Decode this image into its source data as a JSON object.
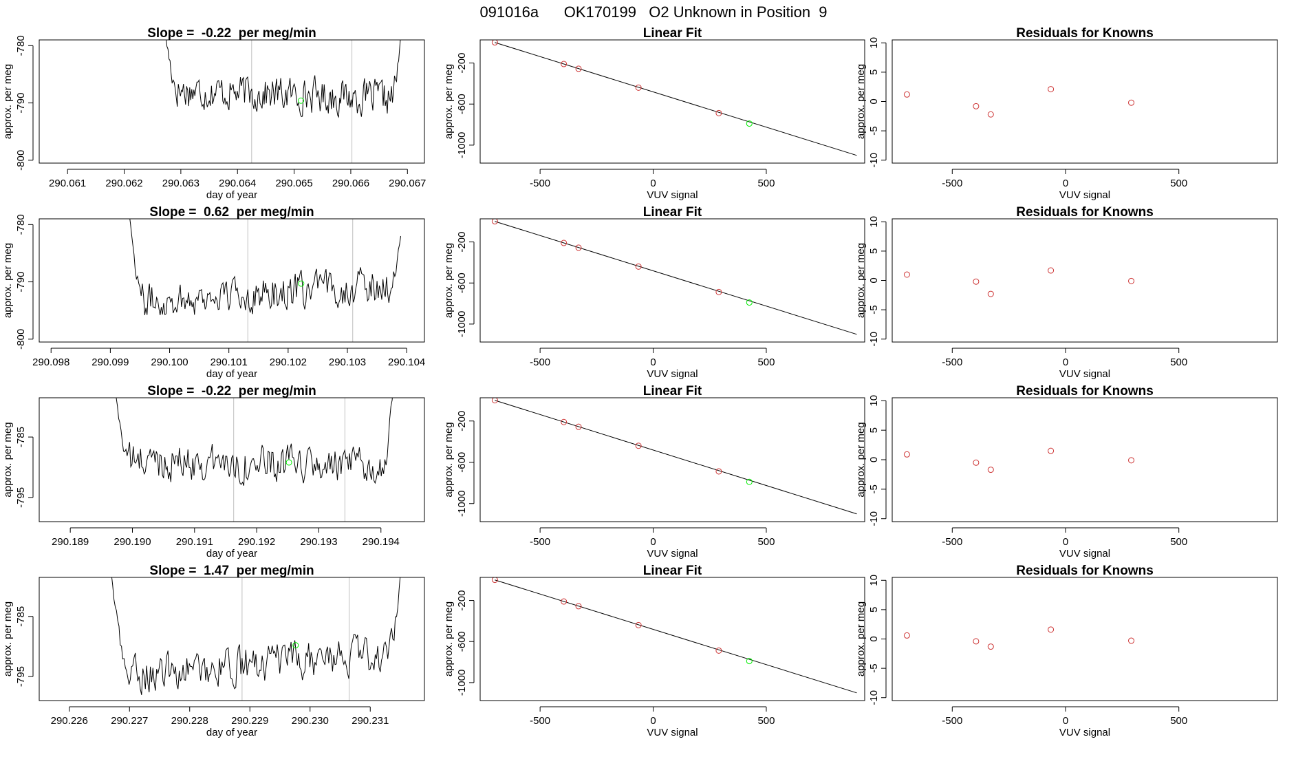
{
  "page_title": "091016a      OK170199   O2 Unknown in Position  9",
  "colors": {
    "trace": "#000000",
    "grid_line": "#bebebe",
    "known_point": "#cd3333",
    "unknown_point": "#00ee00",
    "fit_line": "#000000"
  },
  "chart_data": [
    {
      "type": "line",
      "row": 1,
      "title": "Slope =  -0.22  per meg/min",
      "xlabel": "day of year",
      "ylabel": "approx. per meg",
      "xlim": [
        290.0605,
        290.0673
      ],
      "ylim": [
        -800.5,
        -779
      ],
      "xticks": [
        290.061,
        290.062,
        290.063,
        290.064,
        290.065,
        290.066,
        290.067
      ],
      "xtick_labels": [
        "290.061",
        "290.062",
        "290.063",
        "290.064",
        "290.065",
        "290.066",
        "290.067"
      ],
      "yticks": [
        -800,
        -790,
        -780
      ],
      "ytick_labels": [
        "-800",
        "-790",
        "-780"
      ],
      "x_start": 290.0627,
      "x_end": 290.0669,
      "trace_start": -776,
      "trace_end": -776,
      "baseline": -788.5,
      "drift": -1.6,
      "vlines": [
        290.06425,
        290.06602
      ],
      "marker": {
        "x": 290.06512,
        "y": -789.6
      }
    },
    {
      "type": "line",
      "row": 2,
      "title": "Slope =  0.62  per meg/min",
      "xlabel": "day of year",
      "ylabel": "approx. per meg",
      "xlim": [
        290.0978,
        290.1043
      ],
      "ylim": [
        -800.5,
        -779
      ],
      "xticks": [
        290.098,
        290.099,
        290.1,
        290.101,
        290.102,
        290.103,
        290.104
      ],
      "xtick_labels": [
        "290.098",
        "290.099",
        "290.100",
        "290.101",
        "290.102",
        "290.103",
        "290.104"
      ],
      "yticks": [
        -800,
        -790,
        -780
      ],
      "ytick_labels": [
        "-800",
        "-790",
        "-780"
      ],
      "x_start": 290.0993,
      "x_end": 290.1039,
      "trace_start": -776,
      "trace_end": -782,
      "baseline": -792,
      "drift": 3.2,
      "vlines": [
        290.10132,
        290.10309
      ],
      "marker": {
        "x": 290.10222,
        "y": -790.3
      }
    },
    {
      "type": "line",
      "row": 3,
      "title": "Slope =  -0.22  per meg/min",
      "xlabel": "day of year",
      "ylabel": "approx. per meg",
      "xlim": [
        290.1885,
        290.1947
      ],
      "ylim": [
        -799,
        -778.5
      ],
      "xticks": [
        290.189,
        290.19,
        290.191,
        290.192,
        290.193,
        290.194
      ],
      "xtick_labels": [
        "290.189",
        "290.190",
        "290.191",
        "290.192",
        "290.193",
        "290.194"
      ],
      "yticks": [
        -795,
        -785
      ],
      "ytick_labels": [
        "-795",
        "-785"
      ],
      "x_start": 290.1897,
      "x_end": 290.1942,
      "trace_start": -776,
      "trace_end": -776,
      "baseline": -789.5,
      "drift": -1.4,
      "vlines": [
        290.19163,
        290.19342
      ],
      "marker": {
        "x": 290.19252,
        "y": -789.2
      }
    },
    {
      "type": "line",
      "row": 4,
      "title": "Slope =  1.47  per meg/min",
      "xlabel": "day of year",
      "ylabel": "approx. per meg",
      "xlim": [
        290.2255,
        290.2319
      ],
      "ylim": [
        -799,
        -778.5
      ],
      "xticks": [
        290.226,
        290.227,
        290.228,
        290.229,
        290.23,
        290.231
      ],
      "xtick_labels": [
        "290.226",
        "290.227",
        "290.228",
        "290.229",
        "290.230",
        "290.231"
      ],
      "yticks": [
        -795,
        -785
      ],
      "ytick_labels": [
        "-795",
        "-785"
      ],
      "x_start": 290.2267,
      "x_end": 290.2315,
      "trace_start": -778,
      "trace_end": -778,
      "baseline": -793,
      "drift": 4.0,
      "vlines": [
        290.22887,
        290.23065
      ],
      "marker": {
        "x": 290.22976,
        "y": -789.8
      }
    },
    {
      "type": "scatter",
      "row": 1,
      "title": "Linear Fit",
      "xlabel": "VUV signal",
      "ylabel": "approx. per meg",
      "xlim": [
        -765,
        935
      ],
      "ylim": [
        -1175,
        25
      ],
      "xticks": [
        -500,
        0,
        500
      ],
      "xtick_labels": [
        "-500",
        "0",
        "500"
      ],
      "yticks": [
        -1000,
        -600,
        -200
      ],
      "ytick_labels": [
        "-1000",
        "-600",
        "-200"
      ],
      "line": {
        "x": [
          -700,
          900
        ],
        "y": [
          0,
          -1100
        ]
      },
      "known_points": {
        "x": [
          -700,
          -395,
          -330,
          -65,
          290
        ],
        "y": [
          1,
          -210,
          -256,
          -440,
          -688
        ]
      },
      "unknown_point": {
        "x": 425,
        "y": -790
      }
    },
    {
      "type": "scatter",
      "row": 2,
      "title": "Linear Fit",
      "xlabel": "VUV signal",
      "ylabel": "approx. per meg",
      "xlim": [
        -765,
        935
      ],
      "ylim": [
        -1175,
        25
      ],
      "xticks": [
        -500,
        0,
        500
      ],
      "xtick_labels": [
        "-500",
        "0",
        "500"
      ],
      "yticks": [
        -1000,
        -600,
        -200
      ],
      "ytick_labels": [
        "-1000",
        "-600",
        "-200"
      ],
      "line": {
        "x": [
          -700,
          900
        ],
        "y": [
          0,
          -1100
        ]
      },
      "known_points": {
        "x": [
          -700,
          -395,
          -330,
          -65,
          290
        ],
        "y": [
          1,
          -210,
          -256,
          -440,
          -688
        ]
      },
      "unknown_point": {
        "x": 425,
        "y": -790
      }
    },
    {
      "type": "scatter",
      "row": 3,
      "title": "Linear Fit",
      "xlabel": "VUV signal",
      "ylabel": "approx. per meg",
      "xlim": [
        -765,
        935
      ],
      "ylim": [
        -1175,
        25
      ],
      "xticks": [
        -500,
        0,
        500
      ],
      "xtick_labels": [
        "-500",
        "0",
        "500"
      ],
      "yticks": [
        -1000,
        -600,
        -200
      ],
      "ytick_labels": [
        "-1000",
        "-600",
        "-200"
      ],
      "line": {
        "x": [
          -700,
          900
        ],
        "y": [
          0,
          -1100
        ]
      },
      "known_points": {
        "x": [
          -700,
          -395,
          -330,
          -65,
          290
        ],
        "y": [
          1,
          -210,
          -256,
          -440,
          -688
        ]
      },
      "unknown_point": {
        "x": 425,
        "y": -790
      }
    },
    {
      "type": "scatter",
      "row": 4,
      "title": "Linear Fit",
      "xlabel": "VUV signal",
      "ylabel": "approx. per meg",
      "xlim": [
        -765,
        935
      ],
      "ylim": [
        -1175,
        25
      ],
      "xticks": [
        -500,
        0,
        500
      ],
      "xtick_labels": [
        "-500",
        "0",
        "500"
      ],
      "yticks": [
        -1000,
        -600,
        -200
      ],
      "ytick_labels": [
        "-1000",
        "-600",
        "-200"
      ],
      "line": {
        "x": [
          -700,
          900
        ],
        "y": [
          0,
          -1100
        ]
      },
      "known_points": {
        "x": [
          -700,
          -395,
          -330,
          -65,
          290
        ],
        "y": [
          1,
          -210,
          -256,
          -440,
          -688
        ]
      },
      "unknown_point": {
        "x": 425,
        "y": -790
      }
    },
    {
      "type": "scatter",
      "row": 1,
      "title": "Residuals for Knowns",
      "xlabel": "VUV signal",
      "ylabel": "approx. per meg",
      "xlim": [
        -765,
        935
      ],
      "ylim": [
        -10.5,
        10.5
      ],
      "xticks": [
        -500,
        0,
        500
      ],
      "xtick_labels": [
        "-500",
        "0",
        "500"
      ],
      "yticks": [
        -10,
        -5,
        0,
        5,
        10
      ],
      "ytick_labels": [
        "-10",
        "-5",
        "0",
        "5",
        "10"
      ],
      "x": [
        -700,
        -395,
        -330,
        -65,
        290
      ],
      "y": [
        1.2,
        -0.8,
        -2.2,
        2.1,
        -0.2
      ]
    },
    {
      "type": "scatter",
      "row": 2,
      "title": "Residuals for Knowns",
      "xlabel": "VUV signal",
      "ylabel": "approx. per meg",
      "xlim": [
        -765,
        935
      ],
      "ylim": [
        -10.5,
        10.5
      ],
      "xticks": [
        -500,
        0,
        500
      ],
      "xtick_labels": [
        "-500",
        "0",
        "500"
      ],
      "yticks": [
        -10,
        -5,
        0,
        5,
        10
      ],
      "ytick_labels": [
        "-10",
        "-5",
        "0",
        "5",
        "10"
      ],
      "x": [
        -700,
        -395,
        -330,
        -65,
        290
      ],
      "y": [
        1.0,
        -0.2,
        -2.3,
        1.7,
        -0.1
      ]
    },
    {
      "type": "scatter",
      "row": 3,
      "title": "Residuals for Knowns",
      "xlabel": "VUV signal",
      "ylabel": "approx. per meg",
      "xlim": [
        -765,
        935
      ],
      "ylim": [
        -10.5,
        10.5
      ],
      "xticks": [
        -500,
        0,
        500
      ],
      "xtick_labels": [
        "-500",
        "0",
        "500"
      ],
      "yticks": [
        -10,
        -5,
        0,
        5,
        10
      ],
      "ytick_labels": [
        "-10",
        "-5",
        "0",
        "5",
        "10"
      ],
      "x": [
        -700,
        -395,
        -330,
        -65,
        290
      ],
      "y": [
        0.9,
        -0.5,
        -1.7,
        1.5,
        -0.1
      ]
    },
    {
      "type": "scatter",
      "row": 4,
      "title": "Residuals for Knowns",
      "xlabel": "VUV signal",
      "ylabel": "approx. per meg",
      "xlim": [
        -765,
        935
      ],
      "ylim": [
        -10.5,
        10.5
      ],
      "xticks": [
        -500,
        0,
        500
      ],
      "xtick_labels": [
        "-500",
        "0",
        "500"
      ],
      "yticks": [
        -10,
        -5,
        0,
        5,
        10
      ],
      "ytick_labels": [
        "-10",
        "-5",
        "0",
        "5",
        "10"
      ],
      "x": [
        -700,
        -395,
        -330,
        -65,
        290
      ],
      "y": [
        0.6,
        -0.4,
        -1.3,
        1.6,
        -0.3
      ]
    }
  ]
}
